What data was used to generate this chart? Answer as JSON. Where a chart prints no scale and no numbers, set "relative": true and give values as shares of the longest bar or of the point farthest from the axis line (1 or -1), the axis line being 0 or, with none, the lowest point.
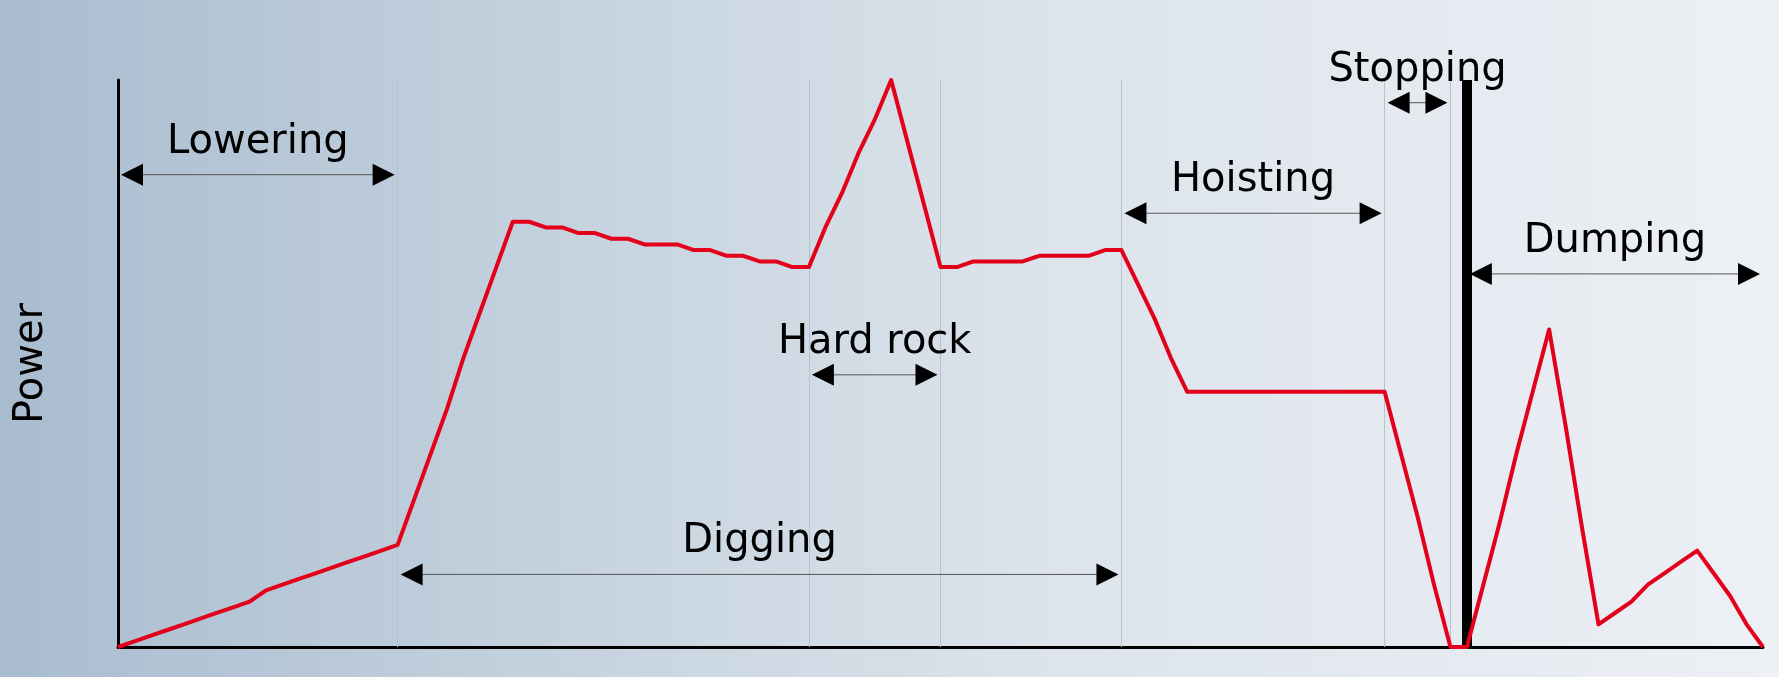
{
  "chart_data": {
    "type": "line",
    "relative": true,
    "ylabel": "Power",
    "marker": "none",
    "grid": "x",
    "categories": [
      null,
      null,
      null,
      null,
      null,
      null,
      null,
      null,
      null,
      null,
      null,
      null,
      null,
      null,
      null,
      null,
      null,
      null,
      null,
      null,
      null,
      null,
      null,
      null,
      null,
      null,
      null,
      null,
      null,
      null,
      null,
      null,
      null,
      null,
      null,
      null,
      null,
      null,
      null,
      null,
      null,
      null,
      null,
      null,
      null,
      null,
      null,
      null,
      null,
      null,
      null,
      null,
      null,
      null,
      null,
      null,
      null,
      null,
      null,
      null,
      null,
      null,
      null,
      null,
      null,
      null,
      null,
      null,
      null,
      null,
      null,
      null,
      null,
      null,
      null,
      null,
      null,
      null,
      null,
      null,
      null,
      null,
      null,
      null,
      null,
      null,
      null,
      null,
      null,
      null,
      null,
      null,
      null,
      null,
      null,
      null,
      null,
      null,
      null,
      null,
      null
    ],
    "series": [
      {
        "color": "#e2001a",
        "values": [
          0,
          0.01,
          0.02,
          0.03,
          0.04,
          0.05,
          0.06,
          0.07,
          0.08,
          0.1,
          0.11,
          0.12,
          0.13,
          0.14,
          0.15,
          0.16,
          0.17,
          0.18,
          0.26,
          0.34,
          0.42,
          0.51,
          0.59,
          0.67,
          0.75,
          0.75,
          0.74,
          0.74,
          0.73,
          0.73,
          0.72,
          0.72,
          0.71,
          0.71,
          0.71,
          0.7,
          0.7,
          0.69,
          0.69,
          0.68,
          0.68,
          0.67,
          0.67,
          0.74,
          0.8,
          0.87,
          0.93,
          1,
          0.89,
          0.78,
          0.67,
          0.67,
          0.68,
          0.68,
          0.68,
          0.68,
          0.69,
          0.69,
          0.69,
          0.69,
          0.7,
          0.7,
          0.64,
          0.58,
          0.51,
          0.45,
          0.45,
          0.45,
          0.45,
          0.45,
          0.45,
          0.45,
          0.45,
          0.45,
          0.45,
          0.45,
          0.45,
          0.45,
          0.34,
          0.23,
          0.11,
          0,
          0,
          0.11,
          0.22,
          0.34,
          0.45,
          0.56,
          0.39,
          0.21,
          0.04,
          0.06,
          0.08,
          0.11,
          0.13,
          0.15,
          0.17,
          0.13,
          0.09,
          0.04,
          0
        ]
      }
    ],
    "annotations": [
      "Lowering",
      "Digging",
      "Hard rock",
      "Hoisting",
      "Stopping",
      "Dumping"
    ]
  }
}
